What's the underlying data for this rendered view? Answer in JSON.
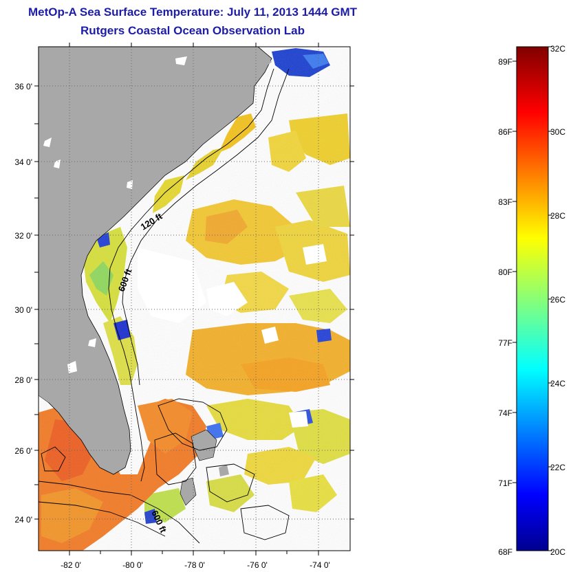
{
  "header": {
    "title": "MetOp-A Sea Surface Temperature:  July 11, 2013 1444 GMT",
    "subtitle": "Rutgers Coastal Ocean Observation Lab"
  },
  "map": {
    "lat_labels": [
      "36 0'",
      "34 0'",
      "32 0'",
      "30 0'",
      "28 0'",
      "26 0'",
      "24 0'"
    ],
    "lon_labels": [
      "-82 0'",
      "-80 0'",
      "-78 0'",
      "-76 0'",
      "-74 0'"
    ],
    "lat_range": [
      23,
      37.2
    ],
    "lon_range": [
      -83,
      -73
    ],
    "contour_labels": [
      "120 ft",
      "600 ft",
      "600 ft"
    ],
    "land_color": "#a8a8a8",
    "cloud_color": "#ffffff"
  },
  "colorbar": {
    "f_labels": [
      "89F",
      "86F",
      "83F",
      "80F",
      "77F",
      "74F",
      "71F",
      "68F"
    ],
    "c_labels": [
      "32C",
      "30C",
      "28C",
      "26C",
      "24C",
      "22C",
      "20C"
    ],
    "range_c": [
      20,
      32
    ],
    "colormap": "jet"
  }
}
